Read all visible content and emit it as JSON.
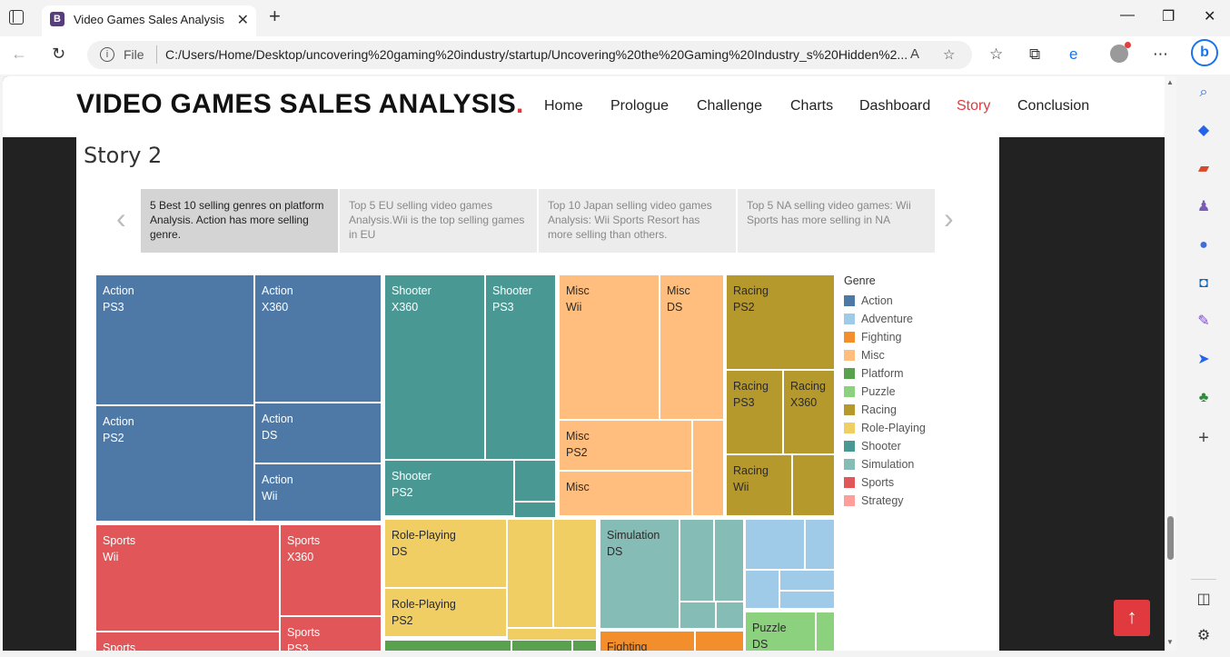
{
  "browser": {
    "tab_title": "Video Games Sales Analysis",
    "tab_favicon": "B",
    "url_scheme": "File",
    "url": "C:/Users/Home/Desktop/uncovering%20gaming%20industry/startup/Uncovering%20the%20Gaming%20Industry_s%20Hidden%2..."
  },
  "site": {
    "title": "VIDEO GAMES SALES ANALYSIS",
    "title_dot": ".",
    "nav": [
      "Home",
      "Prologue",
      "Challenge",
      "Charts",
      "Dashboard",
      "Story",
      "Conclusion"
    ],
    "active_nav": "Story"
  },
  "story": {
    "title": "Story 2",
    "points": [
      "5 Best 10 selling genres on platform Analysis. Action has more selling genre.",
      "Top 5 EU selling video games Analysis.Wii is the top selling games in EU",
      "Top 10 Japan selling video games Analysis: Wii Sports Resort has more selling than others.",
      "Top 5 NA selling video games: Wii Sports has more selling in NA"
    ]
  },
  "treemap_labels": {
    "action_ps3": [
      "Action",
      "PS3"
    ],
    "action_x360": [
      "Action",
      "X360"
    ],
    "action_ps2": [
      "Action",
      "PS2"
    ],
    "action_ds": [
      "Action",
      "DS"
    ],
    "action_wii": [
      "Action",
      "Wii"
    ],
    "shooter_x360": [
      "Shooter",
      "X360"
    ],
    "shooter_ps3": [
      "Shooter",
      "PS3"
    ],
    "shooter_ps2": [
      "Shooter",
      "PS2"
    ],
    "misc_wii": [
      "Misc",
      "Wii"
    ],
    "misc_ds": [
      "Misc",
      "DS"
    ],
    "misc_ps2": [
      "Misc",
      "PS2"
    ],
    "misc_other": [
      "Misc",
      ""
    ],
    "racing_ps2": [
      "Racing",
      "PS2"
    ],
    "racing_ps3": [
      "Racing",
      "PS3"
    ],
    "racing_x360": [
      "Racing",
      "X360"
    ],
    "racing_wii": [
      "Racing",
      "Wii"
    ],
    "sports_wii": [
      "Sports",
      "Wii"
    ],
    "sports_x360": [
      "Sports",
      "X360"
    ],
    "sports_ps3": [
      "Sports",
      "PS3"
    ],
    "sports_ps2": [
      "Sports",
      ""
    ],
    "rpg_ds": [
      "Role-Playing",
      "DS"
    ],
    "rpg_ps2": [
      "Role-Playing",
      "PS2"
    ],
    "sim_ds": [
      "Simulation",
      "DS"
    ],
    "puzzle_ds": [
      "Puzzle",
      "DS"
    ],
    "fighting": [
      "Fighting",
      ""
    ]
  },
  "legend": {
    "title": "Genre",
    "items": [
      {
        "label": "Action",
        "color": "#4e79a7"
      },
      {
        "label": "Adventure",
        "color": "#a0cbe8"
      },
      {
        "label": "Fighting",
        "color": "#f28e2b"
      },
      {
        "label": "Misc",
        "color": "#ffbe7d"
      },
      {
        "label": "Platform",
        "color": "#59a14f"
      },
      {
        "label": "Puzzle",
        "color": "#8cd17d"
      },
      {
        "label": "Racing",
        "color": "#b6992d"
      },
      {
        "label": "Role-Playing",
        "color": "#f1ce63"
      },
      {
        "label": "Shooter",
        "color": "#499894"
      },
      {
        "label": "Simulation",
        "color": "#86bcb6"
      },
      {
        "label": "Sports",
        "color": "#e15759"
      },
      {
        "label": "Strategy",
        "color": "#ff9d9a"
      }
    ]
  },
  "scroll_top_icon": "arrow-up-icon"
}
